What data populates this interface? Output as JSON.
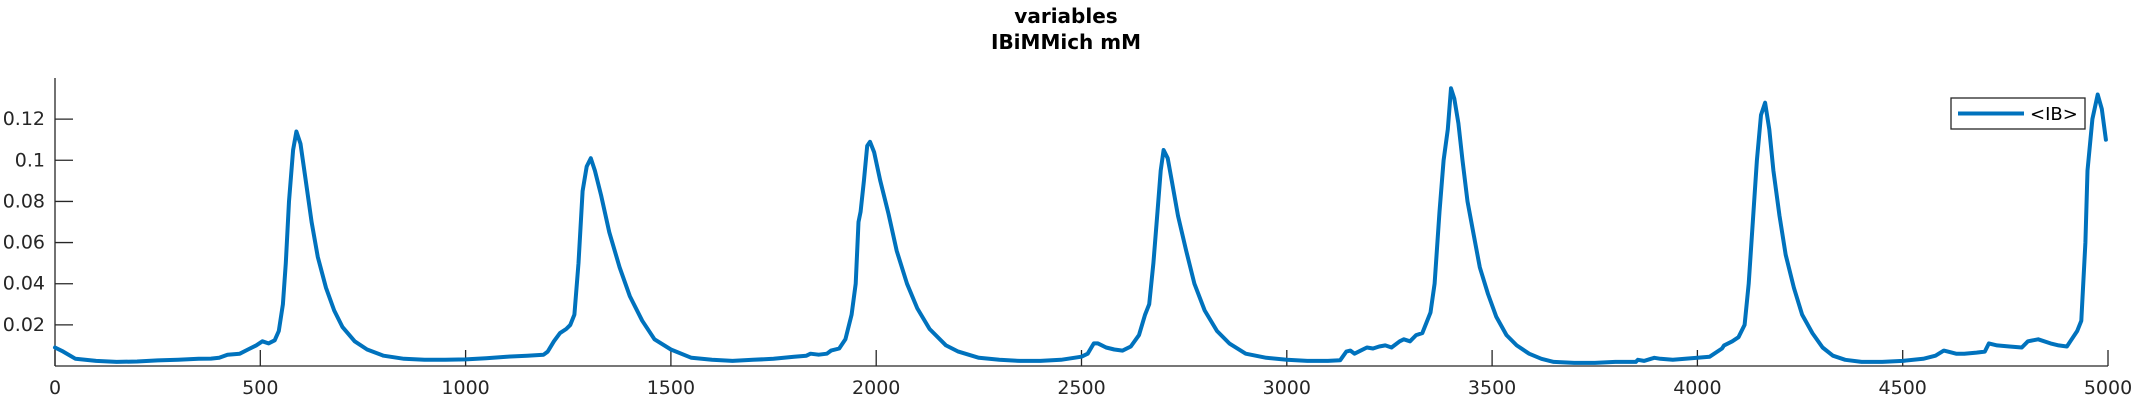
{
  "chart_data": {
    "type": "line",
    "title": "variables",
    "subtitle": "IBiMMich mM",
    "xlabel": "",
    "ylabel": "",
    "xlim": [
      0,
      5000
    ],
    "ylim": [
      0,
      0.14
    ],
    "xticks": [
      0,
      500,
      1000,
      1500,
      2000,
      2500,
      3000,
      3500,
      4000,
      4500,
      5000
    ],
    "xtick_labels": [
      "0",
      "500",
      "1000",
      "1500",
      "2000",
      "2500",
      "3000",
      "3500",
      "4000",
      "4500",
      "5000"
    ],
    "yticks": [
      0.02,
      0.04,
      0.06,
      0.08,
      0.1,
      0.12
    ],
    "ytick_labels": [
      "0.02",
      "0.04",
      "0.06",
      "0.08",
      "0.1",
      "0.12"
    ],
    "grid": false,
    "legend": {
      "position": "top-right"
    },
    "colors": {
      "series": "#0072bd",
      "axis": "#262626"
    },
    "series": [
      {
        "name": "<IB>",
        "color": "#0072bd",
        "x": [
          0,
          20,
          50,
          100,
          150,
          200,
          250,
          300,
          350,
          380,
          400,
          420,
          450,
          470,
          490,
          505,
          520,
          535,
          545,
          555,
          562,
          570,
          580,
          588,
          598,
          610,
          625,
          640,
          660,
          680,
          700,
          730,
          760,
          800,
          850,
          900,
          950,
          1000,
          1050,
          1100,
          1150,
          1190,
          1200,
          1215,
          1230,
          1245,
          1255,
          1265,
          1275,
          1285,
          1295,
          1305,
          1315,
          1330,
          1350,
          1375,
          1400,
          1430,
          1460,
          1500,
          1550,
          1600,
          1650,
          1700,
          1750,
          1800,
          1830,
          1840,
          1860,
          1880,
          1890,
          1910,
          1925,
          1940,
          1950,
          1957,
          1962,
          1970,
          1978,
          1985,
          1995,
          2010,
          2030,
          2050,
          2075,
          2100,
          2130,
          2170,
          2200,
          2250,
          2300,
          2350,
          2400,
          2450,
          2500,
          2515,
          2530,
          2540,
          2550,
          2560,
          2580,
          2600,
          2620,
          2640,
          2655,
          2665,
          2675,
          2685,
          2693,
          2700,
          2710,
          2720,
          2735,
          2755,
          2775,
          2800,
          2830,
          2860,
          2900,
          2950,
          3000,
          3050,
          3100,
          3130,
          3145,
          3155,
          3165,
          3180,
          3195,
          3210,
          3225,
          3240,
          3255,
          3275,
          3285,
          3300,
          3315,
          3330,
          3350,
          3360,
          3372,
          3382,
          3392,
          3400,
          3408,
          3418,
          3428,
          3440,
          3455,
          3470,
          3490,
          3510,
          3535,
          3560,
          3590,
          3620,
          3650,
          3700,
          3750,
          3800,
          3850,
          3855,
          3870,
          3895,
          3910,
          3940,
          3970,
          4000,
          4030,
          4060,
          4065,
          4085,
          4100,
          4115,
          4125,
          4135,
          4145,
          4155,
          4165,
          4175,
          4185,
          4200,
          4215,
          4235,
          4255,
          4280,
          4305,
          4330,
          4360,
          4400,
          4450,
          4500,
          4550,
          4580,
          4600,
          4610,
          4630,
          4650,
          4680,
          4700,
          4710,
          4730,
          4760,
          4790,
          4805,
          4830,
          4860,
          4880,
          4900,
          4910,
          4925,
          4935,
          4945,
          4950,
          4962,
          4975,
          4985,
          4995
        ],
        "y": [
          0.009,
          0.007,
          0.0035,
          0.0025,
          0.002,
          0.0022,
          0.0027,
          0.003,
          0.0035,
          0.0036,
          0.004,
          0.0055,
          0.006,
          0.008,
          0.01,
          0.012,
          0.011,
          0.0125,
          0.017,
          0.03,
          0.05,
          0.08,
          0.105,
          0.114,
          0.108,
          0.091,
          0.07,
          0.053,
          0.038,
          0.027,
          0.019,
          0.012,
          0.008,
          0.005,
          0.0035,
          0.003,
          0.003,
          0.0032,
          0.0038,
          0.0045,
          0.005,
          0.0055,
          0.007,
          0.012,
          0.016,
          0.018,
          0.02,
          0.025,
          0.05,
          0.085,
          0.097,
          0.101,
          0.095,
          0.083,
          0.065,
          0.048,
          0.034,
          0.022,
          0.013,
          0.008,
          0.004,
          0.003,
          0.0025,
          0.003,
          0.0035,
          0.0045,
          0.005,
          0.006,
          0.0055,
          0.006,
          0.0075,
          0.0085,
          0.013,
          0.025,
          0.04,
          0.07,
          0.075,
          0.09,
          0.107,
          0.109,
          0.104,
          0.09,
          0.074,
          0.056,
          0.04,
          0.028,
          0.018,
          0.01,
          0.007,
          0.004,
          0.003,
          0.0025,
          0.0025,
          0.003,
          0.0045,
          0.006,
          0.011,
          0.011,
          0.01,
          0.009,
          0.008,
          0.0075,
          0.0095,
          0.015,
          0.025,
          0.03,
          0.05,
          0.075,
          0.095,
          0.105,
          0.101,
          0.09,
          0.073,
          0.056,
          0.04,
          0.027,
          0.017,
          0.011,
          0.006,
          0.004,
          0.003,
          0.0025,
          0.0025,
          0.0028,
          0.007,
          0.0075,
          0.006,
          0.0075,
          0.009,
          0.0085,
          0.0095,
          0.01,
          0.009,
          0.012,
          0.013,
          0.012,
          0.015,
          0.016,
          0.026,
          0.04,
          0.075,
          0.1,
          0.115,
          0.135,
          0.13,
          0.118,
          0.1,
          0.08,
          0.064,
          0.048,
          0.035,
          0.024,
          0.015,
          0.01,
          0.006,
          0.0035,
          0.002,
          0.0015,
          0.0015,
          0.002,
          0.002,
          0.003,
          0.0025,
          0.004,
          0.0035,
          0.003,
          0.0035,
          0.004,
          0.0045,
          0.0085,
          0.01,
          0.012,
          0.014,
          0.02,
          0.04,
          0.07,
          0.1,
          0.122,
          0.128,
          0.115,
          0.095,
          0.073,
          0.054,
          0.038,
          0.025,
          0.016,
          0.009,
          0.005,
          0.003,
          0.002,
          0.002,
          0.0025,
          0.0035,
          0.005,
          0.0075,
          0.007,
          0.006,
          0.006,
          0.0065,
          0.007,
          0.011,
          0.01,
          0.0095,
          0.009,
          0.012,
          0.013,
          0.011,
          0.01,
          0.0095,
          0.0125,
          0.017,
          0.022,
          0.06,
          0.095,
          0.12,
          0.132,
          0.125,
          0.11
        ]
      }
    ]
  }
}
